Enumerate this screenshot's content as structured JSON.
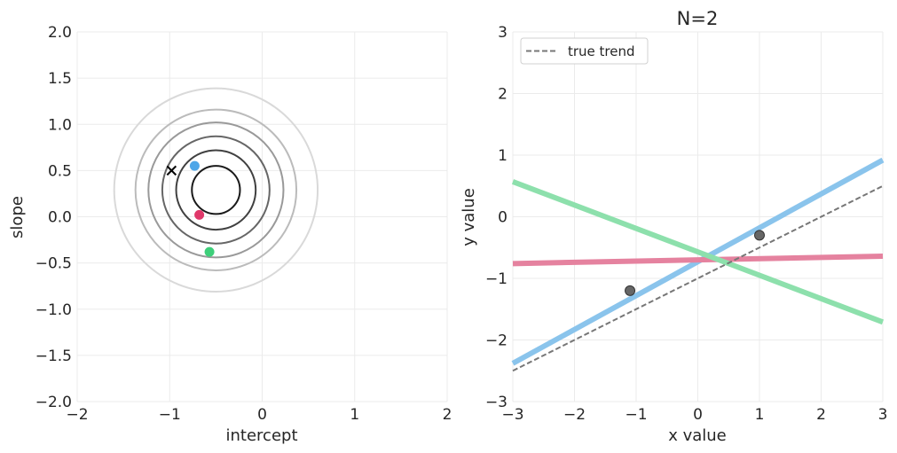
{
  "chart_data": [
    {
      "type": "scatter",
      "xlabel": "intercept",
      "ylabel": "slope",
      "xlim": [
        -2,
        2
      ],
      "ylim": [
        -2,
        2
      ],
      "xticks": [
        "−2",
        "−1",
        "0",
        "1",
        "2"
      ],
      "yticks": [
        "2.0",
        "1.5",
        "1.0",
        "0.5",
        "0.0",
        "−0.5",
        "−1.0",
        "−1.5",
        "−2.0"
      ],
      "xtick_values": [
        -2,
        -1,
        0,
        1,
        2
      ],
      "ytick_values": [
        2.0,
        1.5,
        1.0,
        0.5,
        0.0,
        -0.5,
        -1.0,
        -1.5,
        -2.0
      ],
      "grid": true,
      "contours": {
        "center": [
          -0.5,
          0.29
        ],
        "radii": [
          0.26,
          0.48,
          0.65,
          0.8,
          1.1
        ],
        "colors": [
          "#1a1a1a",
          "#404040",
          "#666666",
          "#999999",
          "#bbbbbb",
          "#d9d9d9"
        ]
      },
      "true_param": {
        "x": -0.98,
        "y": 0.5,
        "marker": "x",
        "color": "#000000"
      },
      "samples": [
        {
          "x": -0.73,
          "y": 0.55,
          "color": "#4da6e8"
        },
        {
          "x": -0.68,
          "y": 0.02,
          "color": "#e0386a"
        },
        {
          "x": -0.57,
          "y": -0.38,
          "color": "#3ecf7a"
        }
      ],
      "extra_contour_radius": 1.1
    },
    {
      "type": "line",
      "title": "N=2",
      "xlabel": "x value",
      "ylabel": "y value",
      "xlim": [
        -3,
        3
      ],
      "ylim": [
        -3,
        3
      ],
      "xticks": [
        "−3",
        "−2",
        "−1",
        "0",
        "1",
        "2",
        "3"
      ],
      "yticks": [
        "3",
        "2",
        "1",
        "0",
        "−1",
        "−2",
        "−3"
      ],
      "xtick_values": [
        -3,
        -2,
        -1,
        0,
        1,
        2,
        3
      ],
      "ytick_values": [
        3,
        2,
        1,
        0,
        -1,
        -2,
        -3
      ],
      "grid": true,
      "legend": {
        "position": "top-left",
        "entries": [
          "true trend"
        ]
      },
      "true_trend": {
        "intercept": -1.0,
        "slope": 0.5,
        "style": "dashed",
        "color": "#777777"
      },
      "sample_lines": [
        {
          "intercept": -0.73,
          "slope": 0.55,
          "color": "#8ac4ec"
        },
        {
          "intercept": -0.7,
          "slope": 0.02,
          "color": "#e5829f"
        },
        {
          "intercept": -0.57,
          "slope": -0.38,
          "color": "#8de0ac"
        }
      ],
      "points": [
        {
          "x": -1.1,
          "y": -1.2
        },
        {
          "x": 1.0,
          "y": -0.3
        }
      ],
      "point_color": "#666666"
    }
  ]
}
